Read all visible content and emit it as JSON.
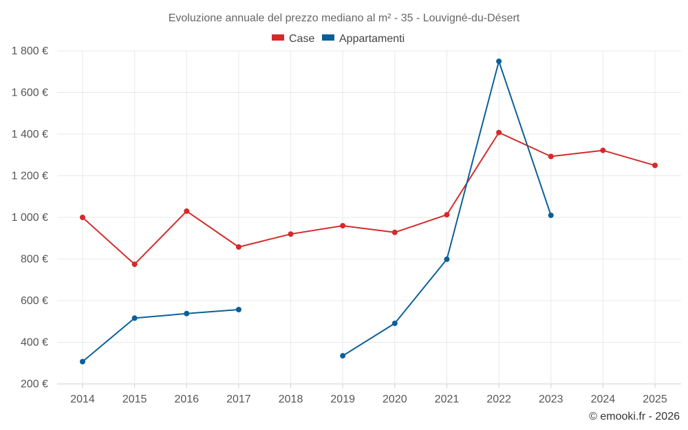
{
  "chart_data": {
    "type": "line",
    "title": "Evoluzione annuale del prezzo mediano al m² - 35 - Louvigné-du-Désert",
    "categories": [
      "2014",
      "2015",
      "2016",
      "2017",
      "2018",
      "2019",
      "2020",
      "2021",
      "2022",
      "2023",
      "2024",
      "2025"
    ],
    "y_ticks": [
      200,
      400,
      600,
      800,
      1000,
      1200,
      1400,
      1600,
      1800
    ],
    "y_tick_labels": [
      "200 €",
      "400 €",
      "600 €",
      "800 €",
      "1 000 €",
      "1 200 €",
      "1 400 €",
      "1 600 €",
      "1 800 €"
    ],
    "ylim": [
      200,
      1800
    ],
    "grid": true,
    "legend_position": "top-center",
    "series": [
      {
        "name": "Case",
        "color": "#d42a2a",
        "values": [
          1000,
          775,
          1030,
          858,
          920,
          960,
          928,
          1013,
          1408,
          1293,
          1322,
          1250
        ]
      },
      {
        "name": "Appartamenti",
        "color": "#0a5f99",
        "values": [
          307,
          516,
          538,
          557,
          null,
          335,
          491,
          799,
          1750,
          1010,
          null,
          null
        ]
      }
    ],
    "credit": "© emooki.fr - 2026"
  }
}
